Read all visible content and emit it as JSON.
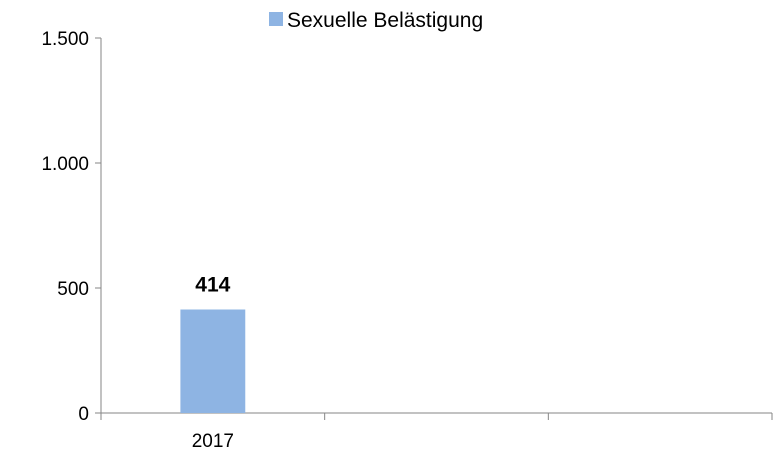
{
  "chart_data": {
    "type": "bar",
    "categories": [
      "2017",
      "",
      ""
    ],
    "series": [
      {
        "name": "Sexuelle Belästigung",
        "values": [
          414,
          null,
          null
        ],
        "color": "#8eb4e3"
      }
    ],
    "data_labels": [
      "414",
      "",
      ""
    ],
    "y_ticks": [
      0,
      500,
      1000,
      1500
    ],
    "y_tick_labels": [
      "0",
      "500",
      "1.000",
      "1.500"
    ],
    "ylim": [
      0,
      1500
    ],
    "grid": false,
    "legend_position": "top"
  }
}
